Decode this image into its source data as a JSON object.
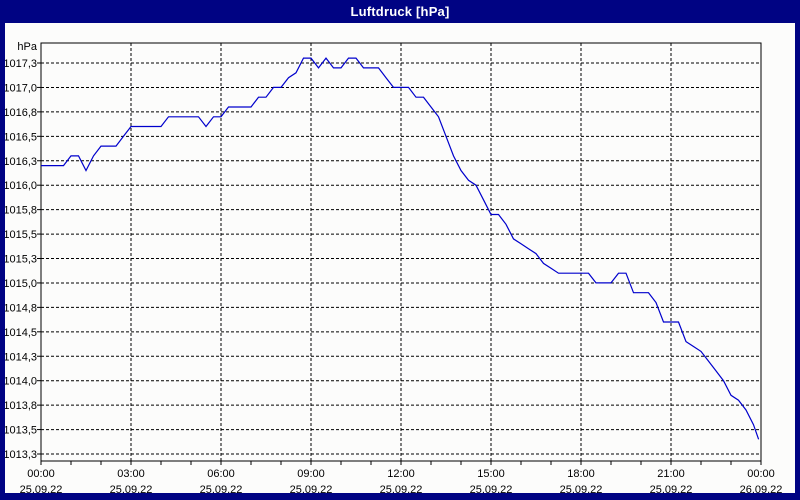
{
  "window": {
    "title": "Luftdruck [hPa]"
  },
  "colors": {
    "frame": "#000383",
    "title_text": "#ffffff",
    "content_bg": "#fcfcfb",
    "grid": "#000000",
    "text": "#000000",
    "line": "#0000cc"
  },
  "chart_data": {
    "type": "line",
    "title": "Luftdruck [hPa]",
    "unit_label": "hPa",
    "grid": "dashed",
    "legend": "none",
    "y_axis": {
      "min": 1013.25,
      "max": 1017.25,
      "step": 0.25,
      "ticks": [
        {
          "value": 1017.25,
          "label": "1017,3"
        },
        {
          "value": 1017.0,
          "label": "1017,0"
        },
        {
          "value": 1016.75,
          "label": "1016,8"
        },
        {
          "value": 1016.5,
          "label": "1016,5"
        },
        {
          "value": 1016.25,
          "label": "1016,3"
        },
        {
          "value": 1016.0,
          "label": "1016,0"
        },
        {
          "value": 1015.75,
          "label": "1015,8"
        },
        {
          "value": 1015.5,
          "label": "1015,5"
        },
        {
          "value": 1015.25,
          "label": "1015,3"
        },
        {
          "value": 1015.0,
          "label": "1015,0"
        },
        {
          "value": 1014.75,
          "label": "1014,8"
        },
        {
          "value": 1014.5,
          "label": "1014,5"
        },
        {
          "value": 1014.25,
          "label": "1014,3"
        },
        {
          "value": 1014.0,
          "label": "1014,0"
        },
        {
          "value": 1013.75,
          "label": "1013,8"
        },
        {
          "value": 1013.5,
          "label": "1013,5"
        },
        {
          "value": 1013.25,
          "label": "1013,3"
        }
      ]
    },
    "x_axis": {
      "span_hours": 24,
      "major_step_hours": 3,
      "minor_tick_hours": 1,
      "ticks": [
        {
          "hour": 0,
          "time": "00:00",
          "date": "25.09.22"
        },
        {
          "hour": 3,
          "time": "03:00",
          "date": "25.09.22"
        },
        {
          "hour": 6,
          "time": "06:00",
          "date": "25.09.22"
        },
        {
          "hour": 9,
          "time": "09:00",
          "date": "25.09.22"
        },
        {
          "hour": 12,
          "time": "12:00",
          "date": "25.09.22"
        },
        {
          "hour": 15,
          "time": "15:00",
          "date": "25.09.22"
        },
        {
          "hour": 18,
          "time": "18:00",
          "date": "25.09.22"
        },
        {
          "hour": 21,
          "time": "21:00",
          "date": "25.09.22"
        },
        {
          "hour": 24,
          "time": "00:00",
          "date": "26.09.22"
        }
      ]
    },
    "series": [
      {
        "name": "Luftdruck",
        "points": [
          [
            0.0,
            1016.2
          ],
          [
            0.25,
            1016.2
          ],
          [
            0.5,
            1016.2
          ],
          [
            0.75,
            1016.2
          ],
          [
            1.0,
            1016.3
          ],
          [
            1.25,
            1016.3
          ],
          [
            1.5,
            1016.15
          ],
          [
            1.75,
            1016.3
          ],
          [
            2.0,
            1016.4
          ],
          [
            2.25,
            1016.4
          ],
          [
            2.5,
            1016.4
          ],
          [
            2.75,
            1016.5
          ],
          [
            3.0,
            1016.6
          ],
          [
            3.25,
            1016.6
          ],
          [
            3.5,
            1016.6
          ],
          [
            3.75,
            1016.6
          ],
          [
            4.0,
            1016.6
          ],
          [
            4.25,
            1016.7
          ],
          [
            4.5,
            1016.7
          ],
          [
            4.75,
            1016.7
          ],
          [
            5.0,
            1016.7
          ],
          [
            5.25,
            1016.7
          ],
          [
            5.5,
            1016.6
          ],
          [
            5.75,
            1016.7
          ],
          [
            6.0,
            1016.7
          ],
          [
            6.25,
            1016.8
          ],
          [
            6.5,
            1016.8
          ],
          [
            6.75,
            1016.8
          ],
          [
            7.0,
            1016.8
          ],
          [
            7.25,
            1016.9
          ],
          [
            7.5,
            1016.9
          ],
          [
            7.75,
            1017.0
          ],
          [
            8.0,
            1017.0
          ],
          [
            8.25,
            1017.1
          ],
          [
            8.5,
            1017.15
          ],
          [
            8.75,
            1017.3
          ],
          [
            9.0,
            1017.3
          ],
          [
            9.25,
            1017.2
          ],
          [
            9.5,
            1017.3
          ],
          [
            9.75,
            1017.2
          ],
          [
            10.0,
            1017.2
          ],
          [
            10.25,
            1017.3
          ],
          [
            10.5,
            1017.3
          ],
          [
            10.75,
            1017.2
          ],
          [
            11.0,
            1017.2
          ],
          [
            11.25,
            1017.2
          ],
          [
            11.5,
            1017.1
          ],
          [
            11.75,
            1017.0
          ],
          [
            12.0,
            1017.0
          ],
          [
            12.25,
            1017.0
          ],
          [
            12.5,
            1016.9
          ],
          [
            12.75,
            1016.9
          ],
          [
            13.0,
            1016.8
          ],
          [
            13.25,
            1016.7
          ],
          [
            13.5,
            1016.5
          ],
          [
            13.75,
            1016.3
          ],
          [
            14.0,
            1016.15
          ],
          [
            14.25,
            1016.05
          ],
          [
            14.5,
            1016.0
          ],
          [
            14.75,
            1015.85
          ],
          [
            15.0,
            1015.7
          ],
          [
            15.25,
            1015.7
          ],
          [
            15.5,
            1015.6
          ],
          [
            15.75,
            1015.45
          ],
          [
            16.0,
            1015.4
          ],
          [
            16.25,
            1015.35
          ],
          [
            16.5,
            1015.3
          ],
          [
            16.75,
            1015.2
          ],
          [
            17.0,
            1015.15
          ],
          [
            17.25,
            1015.1
          ],
          [
            17.5,
            1015.1
          ],
          [
            17.75,
            1015.1
          ],
          [
            18.0,
            1015.1
          ],
          [
            18.25,
            1015.1
          ],
          [
            18.5,
            1015.0
          ],
          [
            18.75,
            1015.0
          ],
          [
            19.0,
            1015.0
          ],
          [
            19.25,
            1015.1
          ],
          [
            19.5,
            1015.1
          ],
          [
            19.75,
            1014.9
          ],
          [
            20.0,
            1014.9
          ],
          [
            20.25,
            1014.9
          ],
          [
            20.5,
            1014.8
          ],
          [
            20.75,
            1014.6
          ],
          [
            21.0,
            1014.6
          ],
          [
            21.25,
            1014.6
          ],
          [
            21.5,
            1014.4
          ],
          [
            21.75,
            1014.35
          ],
          [
            22.0,
            1014.3
          ],
          [
            22.25,
            1014.2
          ],
          [
            22.5,
            1014.1
          ],
          [
            22.75,
            1014.0
          ],
          [
            23.0,
            1013.85
          ],
          [
            23.25,
            1013.8
          ],
          [
            23.5,
            1013.7
          ],
          [
            23.75,
            1013.55
          ],
          [
            23.92,
            1013.4
          ]
        ]
      }
    ]
  }
}
